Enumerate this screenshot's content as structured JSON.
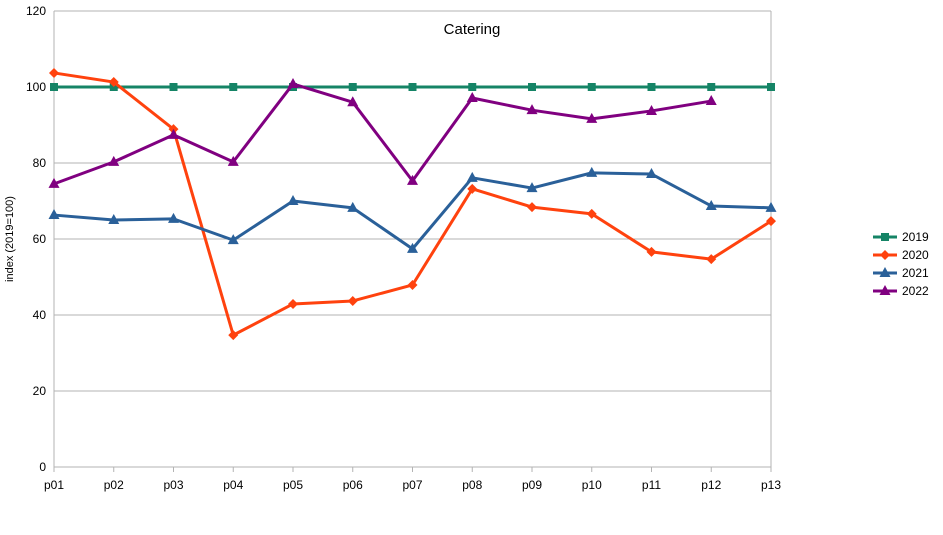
{
  "chart_data": {
    "type": "line",
    "title": "Catering",
    "xlabel": "",
    "ylabel": "index (2019=100)",
    "ylim": [
      0,
      120
    ],
    "yticks": [
      0,
      20,
      40,
      60,
      80,
      100,
      120
    ],
    "grid": true,
    "legend_position": "right",
    "categories": [
      "p01",
      "p02",
      "p03",
      "p04",
      "p05",
      "p06",
      "p07",
      "p08",
      "p09",
      "p10",
      "p11",
      "p12",
      "p13"
    ],
    "series": [
      {
        "name": "2019",
        "color": "#158466",
        "marker": "square",
        "values": [
          100,
          100,
          100,
          100,
          100,
          100,
          100,
          100,
          100,
          100,
          100,
          100,
          100
        ]
      },
      {
        "name": "2020",
        "color": "#ff420e",
        "marker": "diamond",
        "values": [
          103.7,
          101.3,
          88.9,
          34.7,
          42.9,
          43.7,
          47.9,
          73.2,
          68.4,
          66.6,
          56.6,
          54.7,
          64.7
        ]
      },
      {
        "name": "2021",
        "color": "#2a6099",
        "marker": "triangle",
        "values": [
          66.3,
          65.0,
          65.3,
          59.7,
          70.0,
          68.2,
          57.4,
          76.1,
          73.4,
          77.4,
          77.1,
          68.7,
          68.2
        ]
      },
      {
        "name": "2022",
        "color": "#800080",
        "marker": "triangle",
        "values": [
          74.5,
          80.3,
          87.4,
          80.3,
          100.8,
          96.0,
          75.3,
          97.1,
          93.9,
          91.6,
          93.7,
          96.3,
          null
        ]
      }
    ]
  }
}
